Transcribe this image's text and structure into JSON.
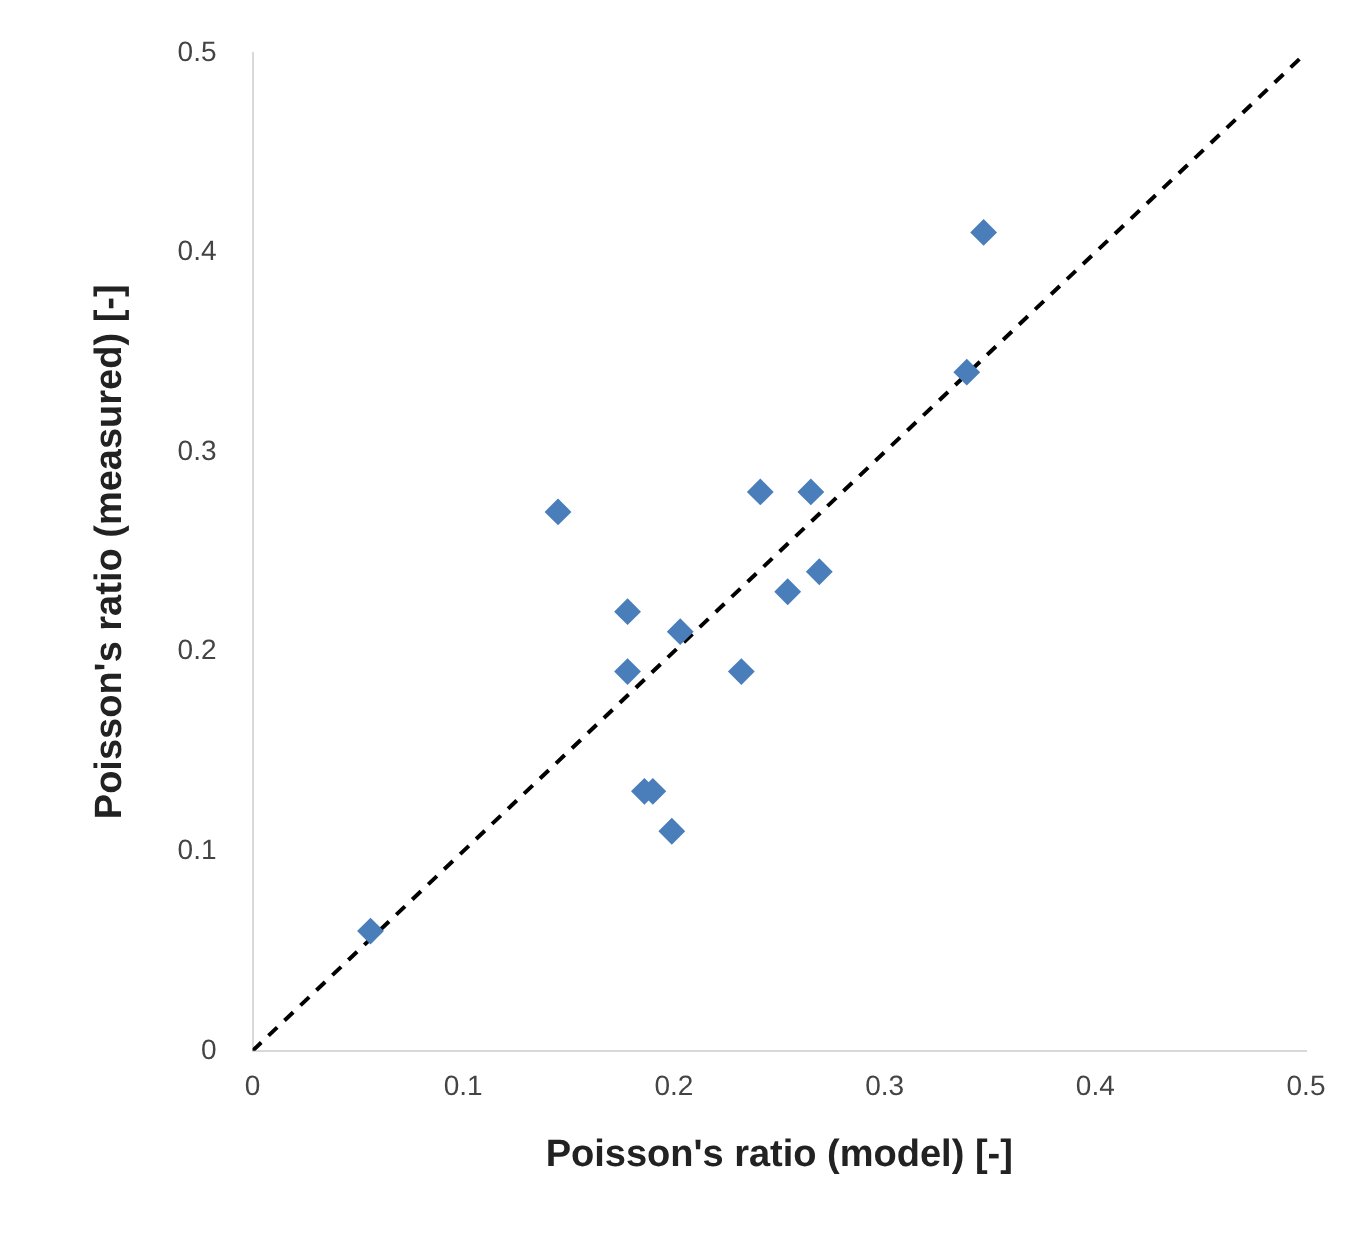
{
  "chart_data": {
    "type": "scatter",
    "xlabel": "Poisson's ratio (model) [-]",
    "ylabel": "Poisson's ratio (measured) [-]",
    "xlim": [
      0,
      0.5
    ],
    "ylim": [
      0,
      0.5
    ],
    "xticks": [
      0,
      0.1,
      0.2,
      0.3,
      0.4,
      0.5
    ],
    "yticks": [
      0,
      0.1,
      0.2,
      0.3,
      0.4,
      0.5
    ],
    "grid": false,
    "legend": false,
    "series": [
      {
        "type": "scatter",
        "color": "#4a7ebb",
        "marker": "diamond",
        "x": [
          0.056,
          0.145,
          0.178,
          0.178,
          0.186,
          0.19,
          0.199,
          0.203,
          0.232,
          0.241,
          0.254,
          0.265,
          0.269,
          0.339,
          0.347
        ],
        "values": [
          0.06,
          0.27,
          0.22,
          0.19,
          0.13,
          0.13,
          0.11,
          0.21,
          0.19,
          0.28,
          0.23,
          0.28,
          0.24,
          0.34,
          0.41
        ]
      },
      {
        "type": "line",
        "color": "#000000",
        "line_style": "dashed",
        "marker": "none",
        "x": [
          0,
          0.5
        ],
        "values": [
          0,
          0.5
        ]
      }
    ]
  }
}
